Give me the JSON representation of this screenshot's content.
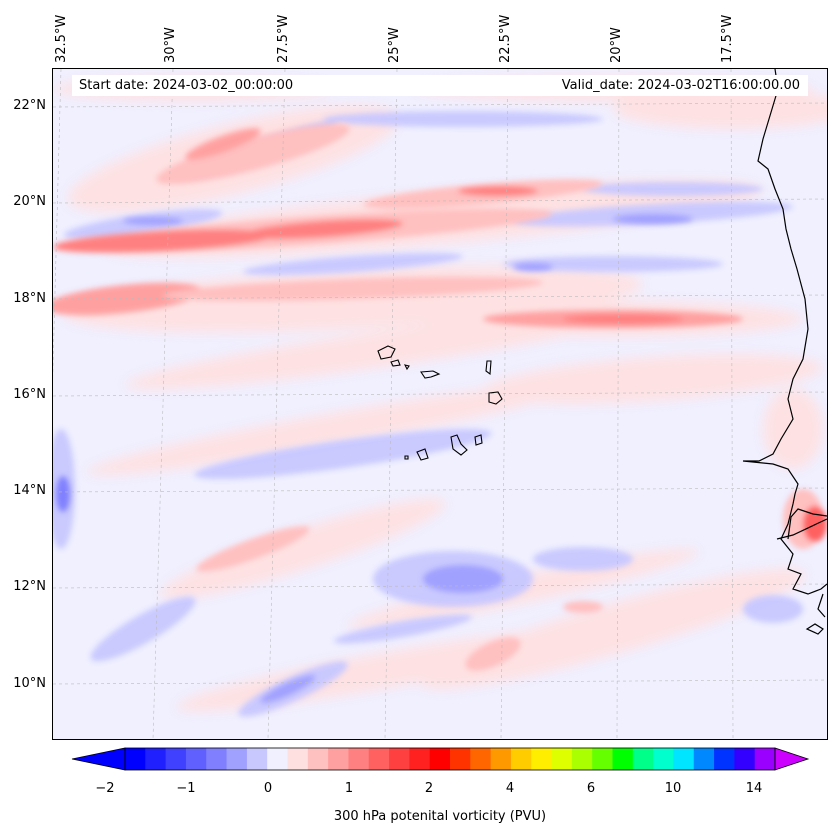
{
  "map": {
    "start_date": "Start date: 2024-03-02_00:00:00",
    "valid_date": "Valid_date: 2024-03-02T16:00:00.00",
    "lon_labels": [
      "32.5°W",
      "30°W",
      "27.5°W",
      "25°W",
      "22.5°W",
      "20°W",
      "17.5°W"
    ],
    "lat_labels": [
      "22°N",
      "20°N",
      "18°N",
      "16°N",
      "14°N",
      "12°N",
      "10°N"
    ],
    "background_color": "#f0f0ff",
    "land_outline_color": "#000000"
  },
  "colorbar": {
    "label": "300 hPa potenital vorticity (PVU)",
    "tick_labels": [
      "−2",
      "−1",
      "0",
      "1",
      "2",
      "4",
      "6",
      "10",
      "14"
    ],
    "colors": [
      "#0000ff",
      "#2020ff",
      "#4040ff",
      "#6060ff",
      "#8080ff",
      "#a0a0ff",
      "#c8c8ff",
      "#f0f0ff",
      "#ffe0e0",
      "#ffc0c0",
      "#ffa0a0",
      "#ff8080",
      "#ff6060",
      "#ff4040",
      "#ff2020",
      "#ff0000",
      "#ff3300",
      "#ff6600",
      "#ff9900",
      "#ffcc00",
      "#ffee00",
      "#ddff00",
      "#aaff00",
      "#66ff00",
      "#00ff00",
      "#00ff88",
      "#00ffcc",
      "#00e5ff",
      "#0088ff",
      "#0033ff",
      "#3300ff",
      "#9900ff"
    ],
    "low_extend_color": "#0000ff",
    "high_extend_color": "#cc00ff"
  }
}
